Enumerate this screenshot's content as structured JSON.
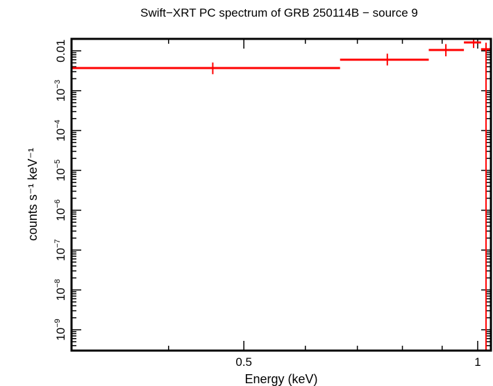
{
  "chart_data": {
    "type": "scatter",
    "title": "Swift−XRT PC spectrum of GRB 250114B − source 9",
    "xlabel": "Energy (keV)",
    "ylabel": "counts s⁻¹ keV⁻¹",
    "x_scale": "log",
    "y_scale": "log",
    "xlim": [
      0.3,
      1.04
    ],
    "ylim": [
      3e-10,
      0.02
    ],
    "grid": false,
    "colors": {
      "series": "#ff0000",
      "axes": "#000000"
    },
    "x_ticks": [
      {
        "value": 0.5,
        "label": "0.5"
      },
      {
        "value": 1,
        "label": "1"
      }
    ],
    "y_ticks": [
      {
        "value": 1e-09,
        "base": "10",
        "exp": "−9"
      },
      {
        "value": 1e-08,
        "base": "10",
        "exp": "−8"
      },
      {
        "value": 1e-07,
        "base": "10",
        "exp": "−7"
      },
      {
        "value": 1e-06,
        "base": "10",
        "exp": "−6"
      },
      {
        "value": 1e-05,
        "base": "10",
        "exp": "−5"
      },
      {
        "value": 0.0001,
        "base": "10",
        "exp": "−4"
      },
      {
        "value": 0.001,
        "base": "10",
        "exp": "−3"
      },
      {
        "value": 0.01,
        "label": "0.01"
      }
    ],
    "series": [
      {
        "points": [
          {
            "x": 0.456,
            "xlo": 0.3,
            "xhi": 0.665,
            "y": 0.0037,
            "ylo": 0.0026,
            "yhi": 0.0051
          },
          {
            "x": 0.765,
            "xlo": 0.665,
            "xhi": 0.865,
            "y": 0.006,
            "ylo": 0.0043,
            "yhi": 0.0085
          },
          {
            "x": 0.91,
            "xlo": 0.865,
            "xhi": 0.96,
            "y": 0.0105,
            "ylo": 0.0073,
            "yhi": 0.0148
          },
          {
            "x": 0.988,
            "xlo": 0.96,
            "xhi": 1.01,
            "y": 0.0163,
            "ylo": 0.0118,
            "yhi": 0.022
          },
          {
            "x": 1.025,
            "xlo": 1.01,
            "xhi": 1.04,
            "y": 0.011,
            "ylo": 3e-10,
            "yhi": 0.016
          }
        ]
      }
    ]
  }
}
